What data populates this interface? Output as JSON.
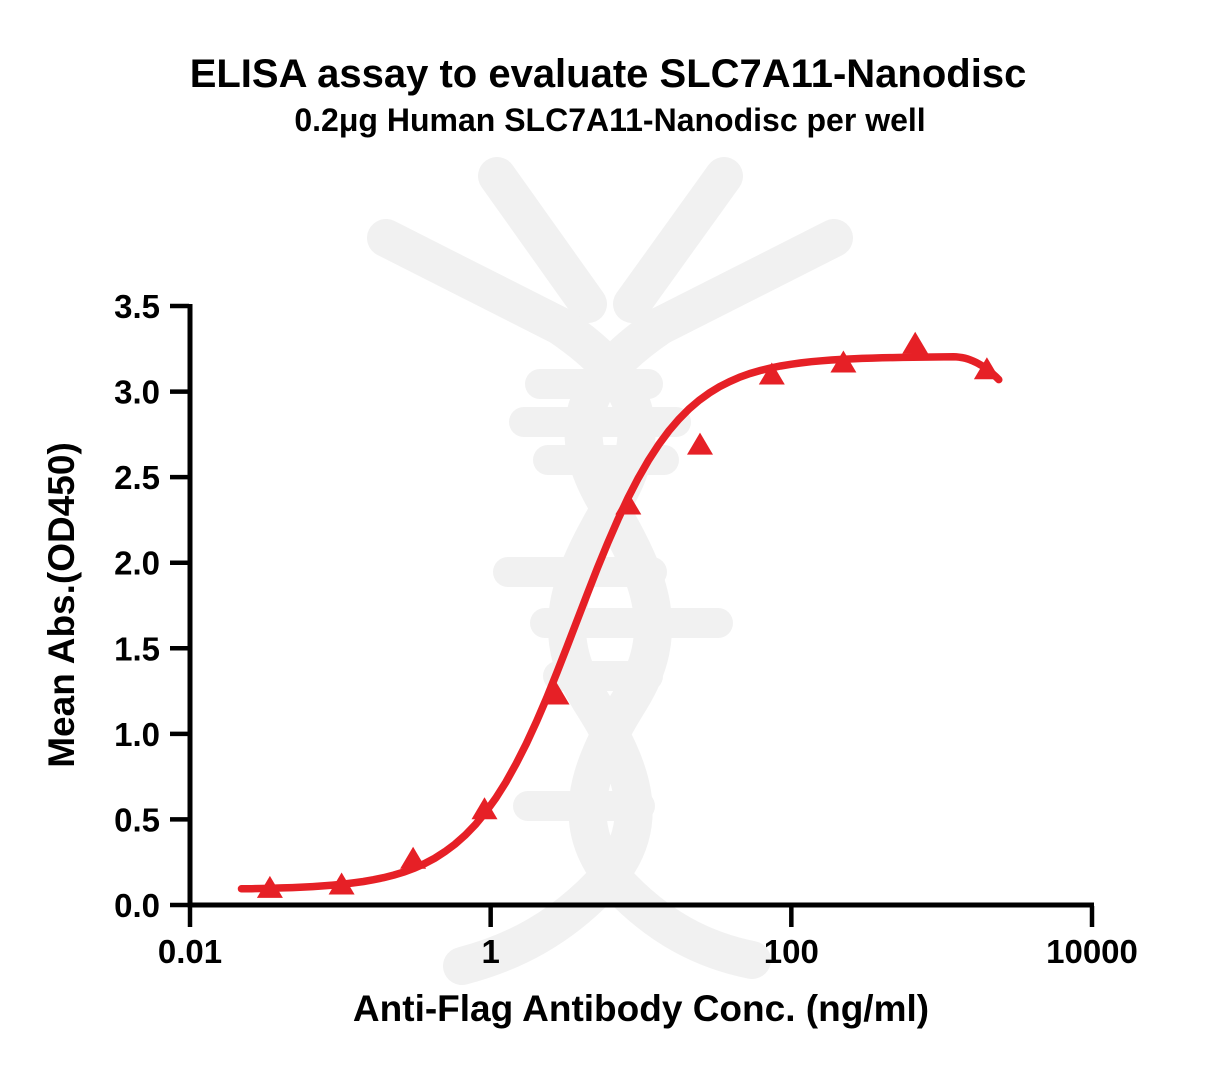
{
  "figure": {
    "title": "ELISA assay to evaluate SLC7A11-Nanodisc",
    "subtitle": "0.2μg Human SLC7A11-Nanodisc per well"
  },
  "watermark_icon": "dna-helix-antibody-watermark",
  "colors": {
    "series_red": "#e62026",
    "axis_black": "#000000",
    "watermark_gray": "#f1f1f1",
    "background": "#ffffff"
  },
  "chart_data": {
    "type": "scatter",
    "title": "ELISA assay to evaluate SLC7A11-Nanodisc",
    "subtitle": "0.2μg Human SLC7A11-Nanodisc per well",
    "xlabel": "Anti-Flag Antibody Conc. (ng/ml)",
    "ylabel": "Mean Abs.(OD450)",
    "x_scale": "log10",
    "xlim": [
      0.01,
      10000
    ],
    "ylim": [
      0,
      3.5
    ],
    "x_ticks": [
      "0.01",
      "1",
      "100",
      "10000"
    ],
    "x_tick_values": [
      0.01,
      1,
      100,
      10000
    ],
    "y_ticks": [
      "0.0",
      "0.5",
      "1.0",
      "1.5",
      "2.0",
      "2.5",
      "3.0",
      "3.5"
    ],
    "y_tick_values": [
      0,
      0.5,
      1.0,
      1.5,
      2.0,
      2.5,
      3.0,
      3.5
    ],
    "grid": false,
    "legend": "none",
    "series": [
      {
        "name": "Human SLC7A11-Nanodisc",
        "marker": "triangle-up",
        "color": "#e62026",
        "x": [
          0.034,
          0.102,
          0.305,
          0.91,
          2.74,
          8.23,
          24.7,
          74.1,
          222,
          667,
          2000
        ],
        "y": [
          0.1,
          0.12,
          0.27,
          0.56,
          1.23,
          2.34,
          2.69,
          3.1,
          3.17,
          3.28,
          3.13
        ]
      }
    ],
    "fit_curve": {
      "model": "4PL",
      "bottom": 0.09,
      "top": 3.205,
      "ec50": 3.7,
      "hill": 1.28,
      "x_start": 0.022,
      "x_plateau_end": 1200,
      "tail_end": {
        "x": 2400,
        "y": 3.07
      }
    }
  }
}
